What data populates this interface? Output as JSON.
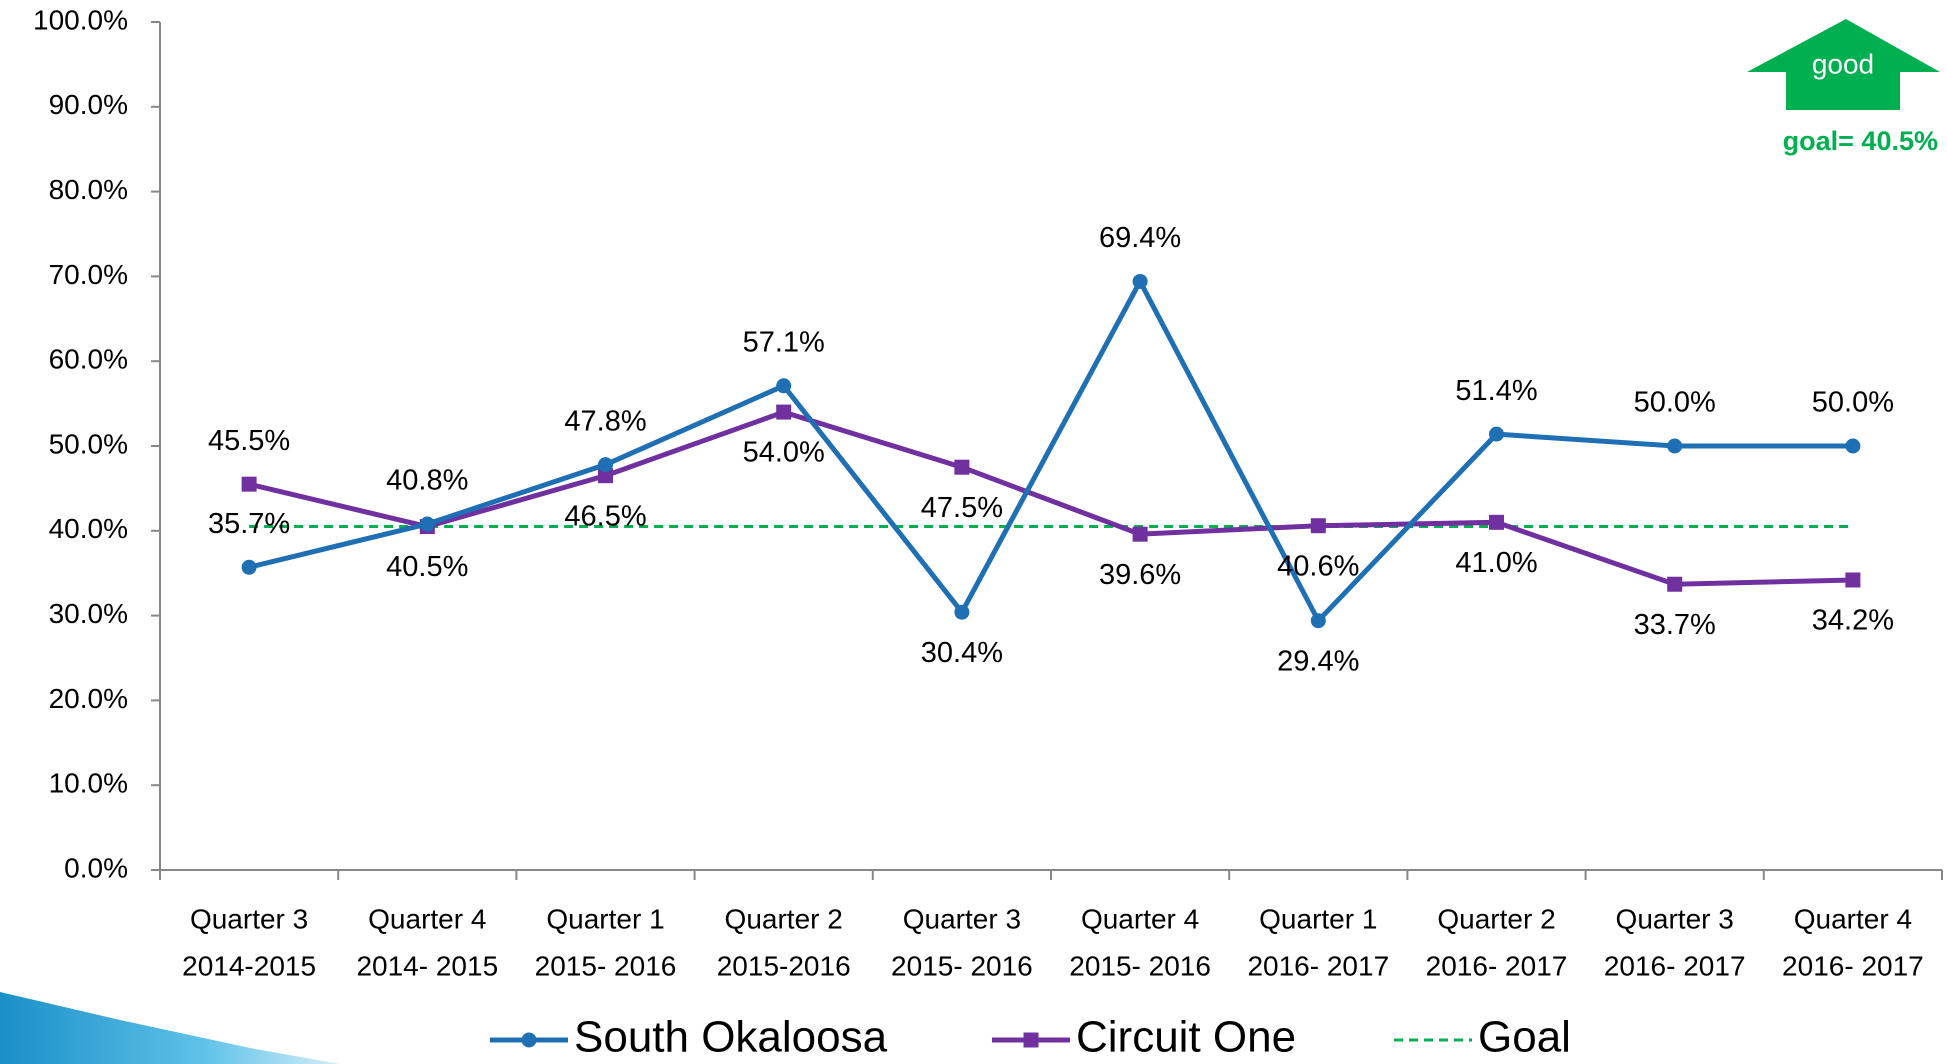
{
  "chart_data": {
    "type": "line",
    "categories": [
      [
        "Quarter 3",
        "2014-2015"
      ],
      [
        "Quarter 4",
        "2014- 2015"
      ],
      [
        "Quarter 1",
        "2015- 2016"
      ],
      [
        "Quarter 2",
        "2015-2016"
      ],
      [
        "Quarter 3",
        "2015- 2016"
      ],
      [
        "Quarter 4",
        "2015- 2016"
      ],
      [
        "Quarter 1",
        "2016- 2017"
      ],
      [
        "Quarter 2",
        "2016- 2017"
      ],
      [
        "Quarter 3",
        "2016- 2017"
      ],
      [
        "Quarter 4",
        "2016- 2017"
      ]
    ],
    "series": [
      {
        "name": "South Okaloosa",
        "color": "#1f6fb5",
        "marker": "circle",
        "values": [
          35.7,
          40.8,
          47.8,
          57.1,
          30.4,
          69.4,
          29.4,
          51.4,
          50.0,
          50.0
        ],
        "value_labels": [
          "35.7%",
          "40.8%",
          "47.8%",
          "57.1%",
          "30.4%",
          "69.4%",
          "29.4%",
          "51.4%",
          "50.0%",
          "50.0%"
        ]
      },
      {
        "name": "Circuit One",
        "color": "#7030a0",
        "marker": "square",
        "values": [
          45.5,
          40.5,
          46.5,
          54.0,
          47.5,
          39.6,
          40.6,
          41.0,
          33.7,
          34.2
        ],
        "value_labels": [
          "45.5%",
          "40.5%",
          "46.5%",
          "54.0%",
          "47.5%",
          "39.6%",
          "40.6%",
          "41.0%",
          "33.7%",
          "34.2%"
        ]
      },
      {
        "name": "Goal",
        "color": "#00b050",
        "dashed": true,
        "values": [
          40.5,
          40.5,
          40.5,
          40.5,
          40.5,
          40.5,
          40.5,
          40.5,
          40.5,
          40.5
        ]
      }
    ],
    "ylim": [
      0,
      100
    ],
    "yticks": [
      {
        "value": 0,
        "label": "0.0%"
      },
      {
        "value": 10,
        "label": "10.0%"
      },
      {
        "value": 20,
        "label": "20.0%"
      },
      {
        "value": 30,
        "label": "30.0%"
      },
      {
        "value": 40,
        "label": "40.0%"
      },
      {
        "value": 50,
        "label": "50.0%"
      },
      {
        "value": 60,
        "label": "60.0%"
      },
      {
        "value": 70,
        "label": "70.0%"
      },
      {
        "value": 80,
        "label": "80.0%"
      },
      {
        "value": 90,
        "label": "90.0%"
      },
      {
        "value": 100,
        "label": "100.0%"
      }
    ],
    "grid": false,
    "legend": "bottom",
    "annotations": {
      "arrow": "good",
      "goal": "goal= 40.5%"
    }
  }
}
